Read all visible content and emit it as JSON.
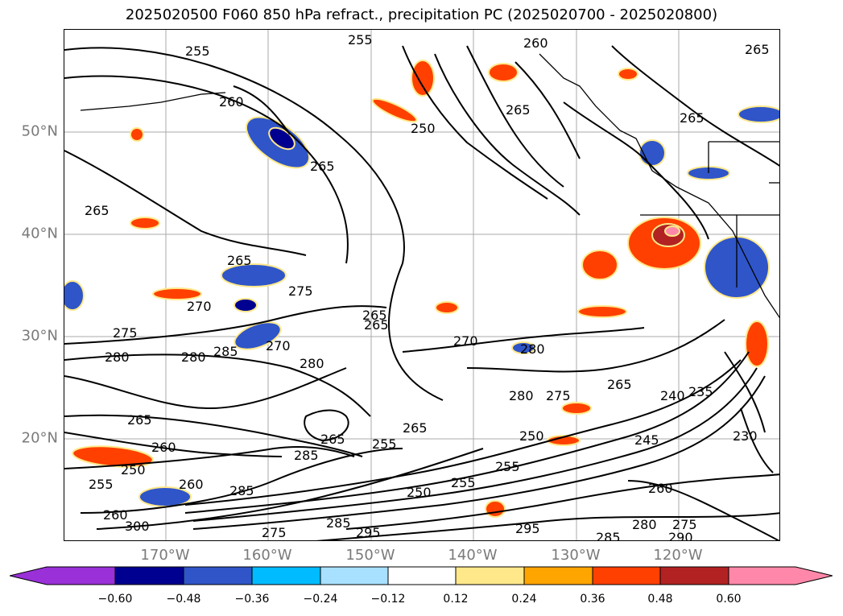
{
  "title": "2025020500 F060 850 hPa refract., precipitation PC (2025020700 - 2025020800)",
  "latitude_labels": [
    "50°N",
    "40°N",
    "30°N",
    "20°N"
  ],
  "longitude_labels": [
    "170°W",
    "160°W",
    "150°W",
    "140°W",
    "130°W",
    "120°W"
  ],
  "colorbar": {
    "ticks": [
      "−0.60",
      "−0.48",
      "−0.36",
      "−0.24",
      "−0.12",
      "0.12",
      "0.24",
      "0.36",
      "0.48",
      "0.60"
    ],
    "colors": [
      "#9a30d8",
      "#000090",
      "#2f55c8",
      "#00bbff",
      "#a8e0ff",
      "#ffffff",
      "#ffe88a",
      "#ffa500",
      "#ff4000",
      "#b22222",
      "#ff88aa"
    ]
  },
  "contour_labels": [
    "255",
    "255",
    "260",
    "260",
    "265",
    "250",
    "265",
    "265",
    "265",
    "265",
    "265",
    "265",
    "265",
    "270",
    "270",
    "275",
    "275",
    "280",
    "280",
    "285",
    "280",
    "270",
    "265",
    "280",
    "280",
    "275",
    "265",
    "265",
    "255",
    "255",
    "250",
    "245",
    "240",
    "235",
    "230",
    "260",
    "280",
    "275",
    "290",
    "285",
    "295",
    "295",
    "285",
    "275",
    "255",
    "285",
    "260",
    "250",
    "260",
    "300",
    "265",
    "285",
    "260",
    "250",
    "255"
  ]
}
